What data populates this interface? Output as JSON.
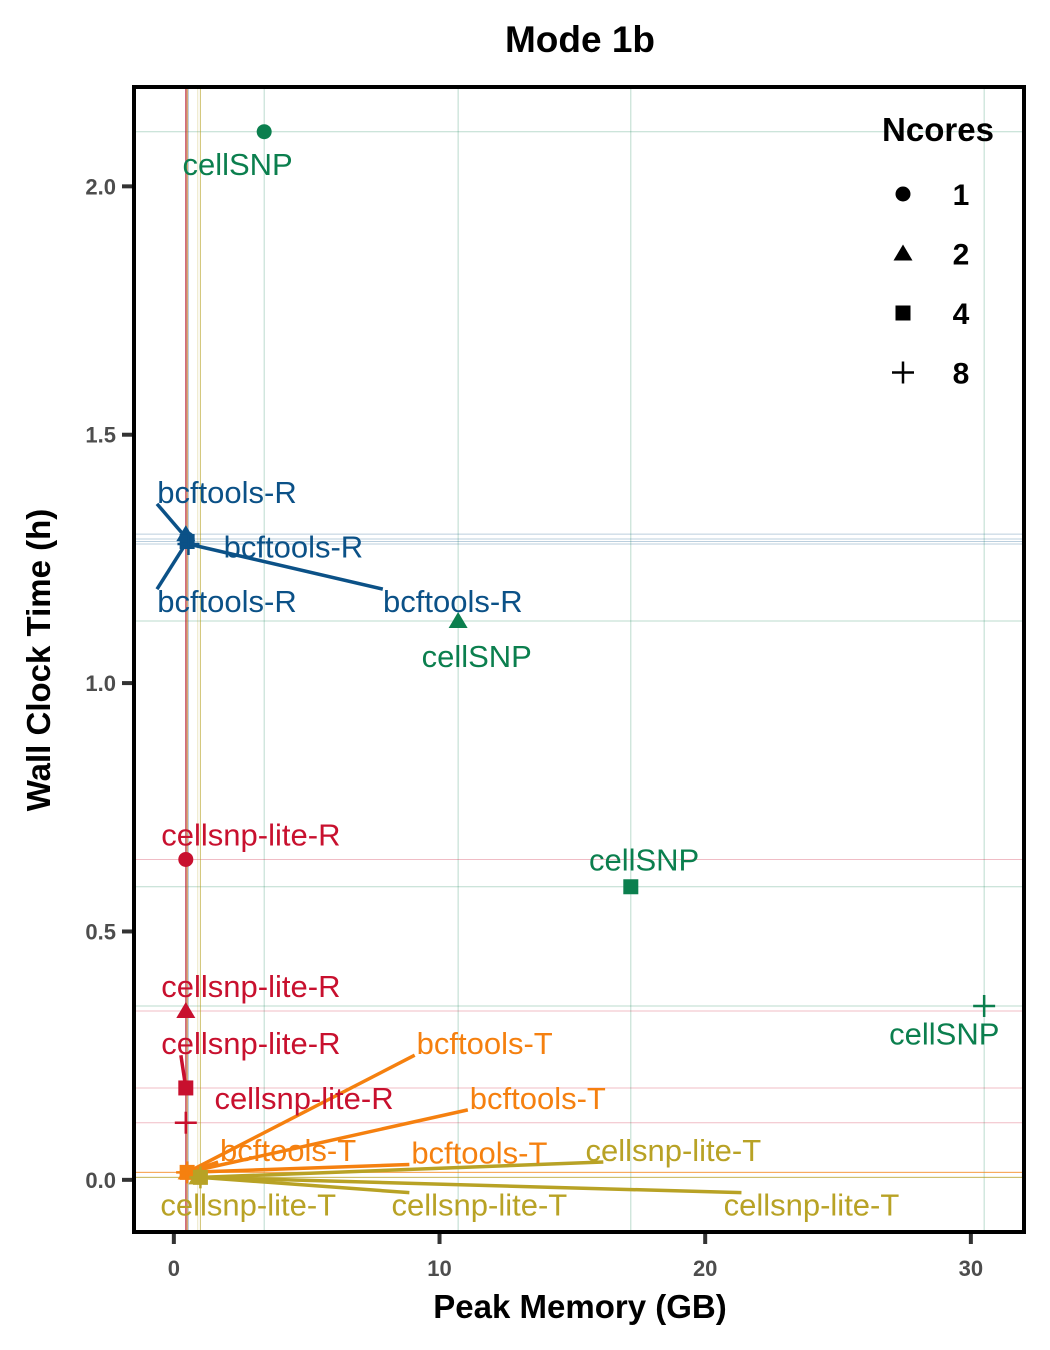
{
  "chart_data": {
    "type": "scatter",
    "title": "Mode 1b",
    "xlabel": "Peak Memory (GB)",
    "ylabel": "Wall Clock Time (h)",
    "xlim": [
      -1.5,
      32.0
    ],
    "ylim": [
      -0.105,
      2.2
    ],
    "x_ticks": [
      0,
      10,
      20,
      30
    ],
    "y_ticks": [
      0.0,
      0.5,
      1.0,
      1.5,
      2.0
    ],
    "x_tick_labels": [
      "0",
      "10",
      "20",
      "30"
    ],
    "y_tick_labels": [
      "0.0",
      "0.5",
      "1.0",
      "1.5",
      "2.0"
    ],
    "grid": true,
    "legend": {
      "title": "Ncores",
      "position": "top-right",
      "entries": [
        {
          "label": "1",
          "shape": "circle"
        },
        {
          "label": "2",
          "shape": "triangle"
        },
        {
          "label": "4",
          "shape": "square"
        },
        {
          "label": "8",
          "shape": "plus"
        }
      ]
    },
    "colors": {
      "cellSNP": "#0b7f4e",
      "bcftools-R": "#0b5187",
      "cellsnp-lite-R": "#c8102e",
      "bcftools-T": "#f5800f",
      "cellsnp-lite-T": "#b8a225"
    },
    "points": [
      {
        "tool": "cellSNP",
        "ncores": "1",
        "x": 3.4,
        "y": 2.11,
        "label": "cellSNP",
        "lx": 2.4,
        "ly": 2.045,
        "leader": false
      },
      {
        "tool": "cellSNP",
        "ncores": "2",
        "x": 10.7,
        "y": 1.125,
        "label": "cellSNP",
        "lx": 11.4,
        "ly": 1.055,
        "leader": false
      },
      {
        "tool": "cellSNP",
        "ncores": "4",
        "x": 17.2,
        "y": 0.59,
        "label": "cellSNP",
        "lx": 17.7,
        "ly": 0.645,
        "leader": false
      },
      {
        "tool": "cellSNP",
        "ncores": "8",
        "x": 30.5,
        "y": 0.35,
        "label": "cellSNP",
        "lx": 29.0,
        "ly": 0.295,
        "leader": false
      },
      {
        "tool": "bcftools-R",
        "ncores": "1",
        "x": 0.5,
        "y": 1.29,
        "label": "bcftools-R",
        "lx": 2.0,
        "ly": 1.385,
        "leader": true
      },
      {
        "tool": "bcftools-R",
        "ncores": "2",
        "x": 0.45,
        "y": 1.3,
        "label": "bcftools-R",
        "lx": 4.5,
        "ly": 1.275,
        "leader": false
      },
      {
        "tool": "bcftools-R",
        "ncores": "4",
        "x": 0.5,
        "y": 1.285,
        "label": "bcftools-R",
        "lx": 2.0,
        "ly": 1.165,
        "leader": true
      },
      {
        "tool": "bcftools-R",
        "ncores": "8",
        "x": 0.55,
        "y": 1.28,
        "label": "bcftools-R",
        "lx": 10.5,
        "ly": 1.165,
        "leader": true
      },
      {
        "tool": "cellsnp-lite-R",
        "ncores": "1",
        "x": 0.45,
        "y": 0.645,
        "label": "cellsnp-lite-R",
        "lx": 2.9,
        "ly": 0.695,
        "leader": false
      },
      {
        "tool": "cellsnp-lite-R",
        "ncores": "2",
        "x": 0.45,
        "y": 0.34,
        "label": "cellsnp-lite-R",
        "lx": 2.9,
        "ly": 0.39,
        "leader": false
      },
      {
        "tool": "cellsnp-lite-R",
        "ncores": "4",
        "x": 0.45,
        "y": 0.185,
        "label": "cellsnp-lite-R",
        "lx": 2.9,
        "ly": 0.275,
        "leader": true
      },
      {
        "tool": "cellsnp-lite-R",
        "ncores": "8",
        "x": 0.45,
        "y": 0.115,
        "label": "cellsnp-lite-R",
        "lx": 4.9,
        "ly": 0.165,
        "leader": false
      },
      {
        "tool": "bcftools-T",
        "ncores": "1",
        "x": 0.5,
        "y": 0.015,
        "label": "bcftools-T",
        "lx": 11.7,
        "ly": 0.275,
        "leader": true
      },
      {
        "tool": "bcftools-T",
        "ncores": "2",
        "x": 0.5,
        "y": 0.015,
        "label": "bcftools-T",
        "lx": 13.7,
        "ly": 0.165,
        "leader": true
      },
      {
        "tool": "bcftools-T",
        "ncores": "4",
        "x": 0.5,
        "y": 0.015,
        "label": "bcftools-T",
        "lx": 4.3,
        "ly": 0.06,
        "leader": true
      },
      {
        "tool": "bcftools-T",
        "ncores": "8",
        "x": 0.5,
        "y": 0.015,
        "label": "bcftools-T",
        "lx": 11.5,
        "ly": 0.055,
        "leader": true
      },
      {
        "tool": "cellsnp-lite-T",
        "ncores": "1",
        "x": 1.0,
        "y": 0.005,
        "label": "cellsnp-lite-T",
        "lx": 18.8,
        "ly": 0.06,
        "leader": true
      },
      {
        "tool": "cellsnp-lite-T",
        "ncores": "2",
        "x": 0.9,
        "y": 0.005,
        "label": "cellsnp-lite-T",
        "lx": 2.8,
        "ly": -0.05,
        "leader": false
      },
      {
        "tool": "cellsnp-lite-T",
        "ncores": "4",
        "x": 1.0,
        "y": 0.005,
        "label": "cellsnp-lite-T",
        "lx": 11.5,
        "ly": -0.05,
        "leader": true
      },
      {
        "tool": "cellsnp-lite-T",
        "ncores": "8",
        "x": 1.0,
        "y": 0.005,
        "label": "cellsnp-lite-T",
        "lx": 24.0,
        "ly": -0.05,
        "leader": true
      }
    ]
  }
}
